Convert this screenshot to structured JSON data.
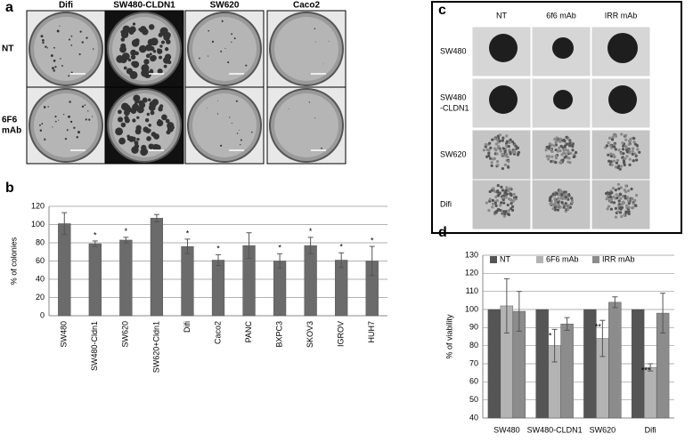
{
  "panel_labels": [
    "a",
    "b",
    "c",
    "d"
  ],
  "panel_a": {
    "columns": [
      "Difi",
      "SW480-CLDN1",
      "SW620",
      "Caco2"
    ],
    "rows": [
      [
        "NT"
      ],
      [
        "6F6",
        "mAb"
      ]
    ]
  },
  "panel_c": {
    "columns": [
      "NT",
      "6f6 mAb",
      "IRR mAb"
    ],
    "rows": [
      [
        "SW480"
      ],
      [
        "SW480",
        "-CLDN1"
      ],
      [
        "SW620"
      ],
      [
        "Difi"
      ]
    ]
  },
  "chart_data": [
    {
      "type": "bar",
      "ylabel": "% of colonies",
      "categories": [
        "SW480",
        "SW480-Cldn1",
        "SW620",
        "SW620+Cldn1",
        "Difi",
        "Caco2",
        "PANC",
        "BXPC3",
        "SKOV3",
        "IGROV",
        "HUH7"
      ],
      "values": [
        101,
        79,
        83,
        107,
        76,
        61,
        77,
        60,
        77,
        61,
        60
      ],
      "errors": [
        12,
        3,
        3,
        4,
        8,
        6,
        14,
        8,
        9,
        8,
        16
      ],
      "significance": [
        null,
        "*",
        "*",
        null,
        "*",
        "*",
        null,
        "*",
        "*",
        "*",
        "*"
      ],
      "color": "#6b6b6b",
      "ylim": [
        0,
        120
      ],
      "yticks": [
        0,
        20,
        40,
        60,
        80,
        100,
        120
      ],
      "grid": true
    },
    {
      "type": "bar",
      "ylabel": "% of viability",
      "categories": [
        "SW480",
        "SW480-CLDN1",
        "SW620",
        "Difi"
      ],
      "series": [
        {
          "name": "NT",
          "color": "#555555",
          "values": [
            100,
            100,
            100,
            100
          ],
          "errors": [
            0,
            0,
            0,
            0
          ],
          "significance": [
            null,
            null,
            null,
            null
          ]
        },
        {
          "name": "6F6 mAb",
          "color": "#b3b3b3",
          "values": [
            102,
            80,
            84,
            68
          ],
          "errors": [
            15,
            9,
            10,
            2
          ],
          "significance": [
            null,
            "*",
            "**",
            "***"
          ]
        },
        {
          "name": "IRR mAb",
          "color": "#8c8c8c",
          "values": [
            99,
            92,
            104,
            98
          ],
          "errors": [
            11,
            3.5,
            3,
            11
          ],
          "significance": [
            null,
            null,
            null,
            null
          ]
        }
      ],
      "ylim": [
        40,
        130
      ],
      "yticks": [
        40,
        50,
        60,
        70,
        80,
        90,
        100,
        110,
        120,
        130
      ],
      "grid": true,
      "legend": "top"
    }
  ]
}
